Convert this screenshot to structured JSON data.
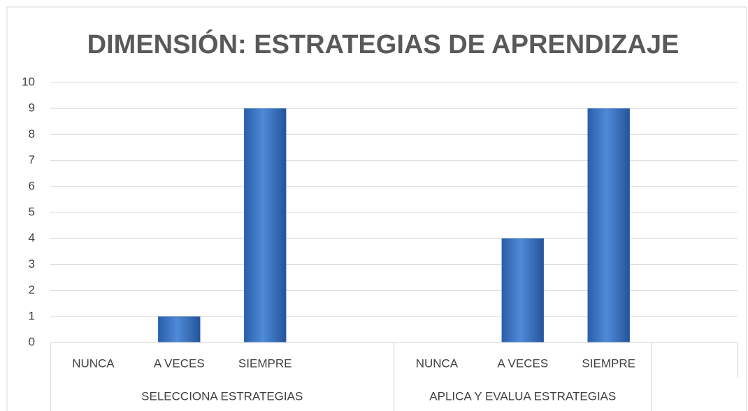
{
  "chart_data": {
    "type": "bar",
    "title": "DIMENSIÓN: ESTRATEGIAS DE APRENDIZAJE",
    "groups": [
      {
        "name": "SELECCIONA ESTRATEGIAS",
        "categories": [
          "NUNCA",
          "A VECES",
          "SIEMPRE",
          null
        ],
        "values": [
          0,
          1,
          9,
          null
        ]
      },
      {
        "name": "APLICA Y EVALUA ESTRATEGIAS",
        "categories": [
          "NUNCA",
          "A VECES",
          "SIEMPRE"
        ],
        "values": [
          0,
          4,
          9
        ]
      },
      {
        "name": null,
        "categories": [
          null
        ],
        "values": [
          null
        ]
      }
    ],
    "color": "#3b72c2",
    "ylim": [
      0,
      10
    ],
    "yticks": [
      0,
      1,
      2,
      3,
      4,
      5,
      6,
      7,
      8,
      9,
      10
    ],
    "grid": true
  }
}
